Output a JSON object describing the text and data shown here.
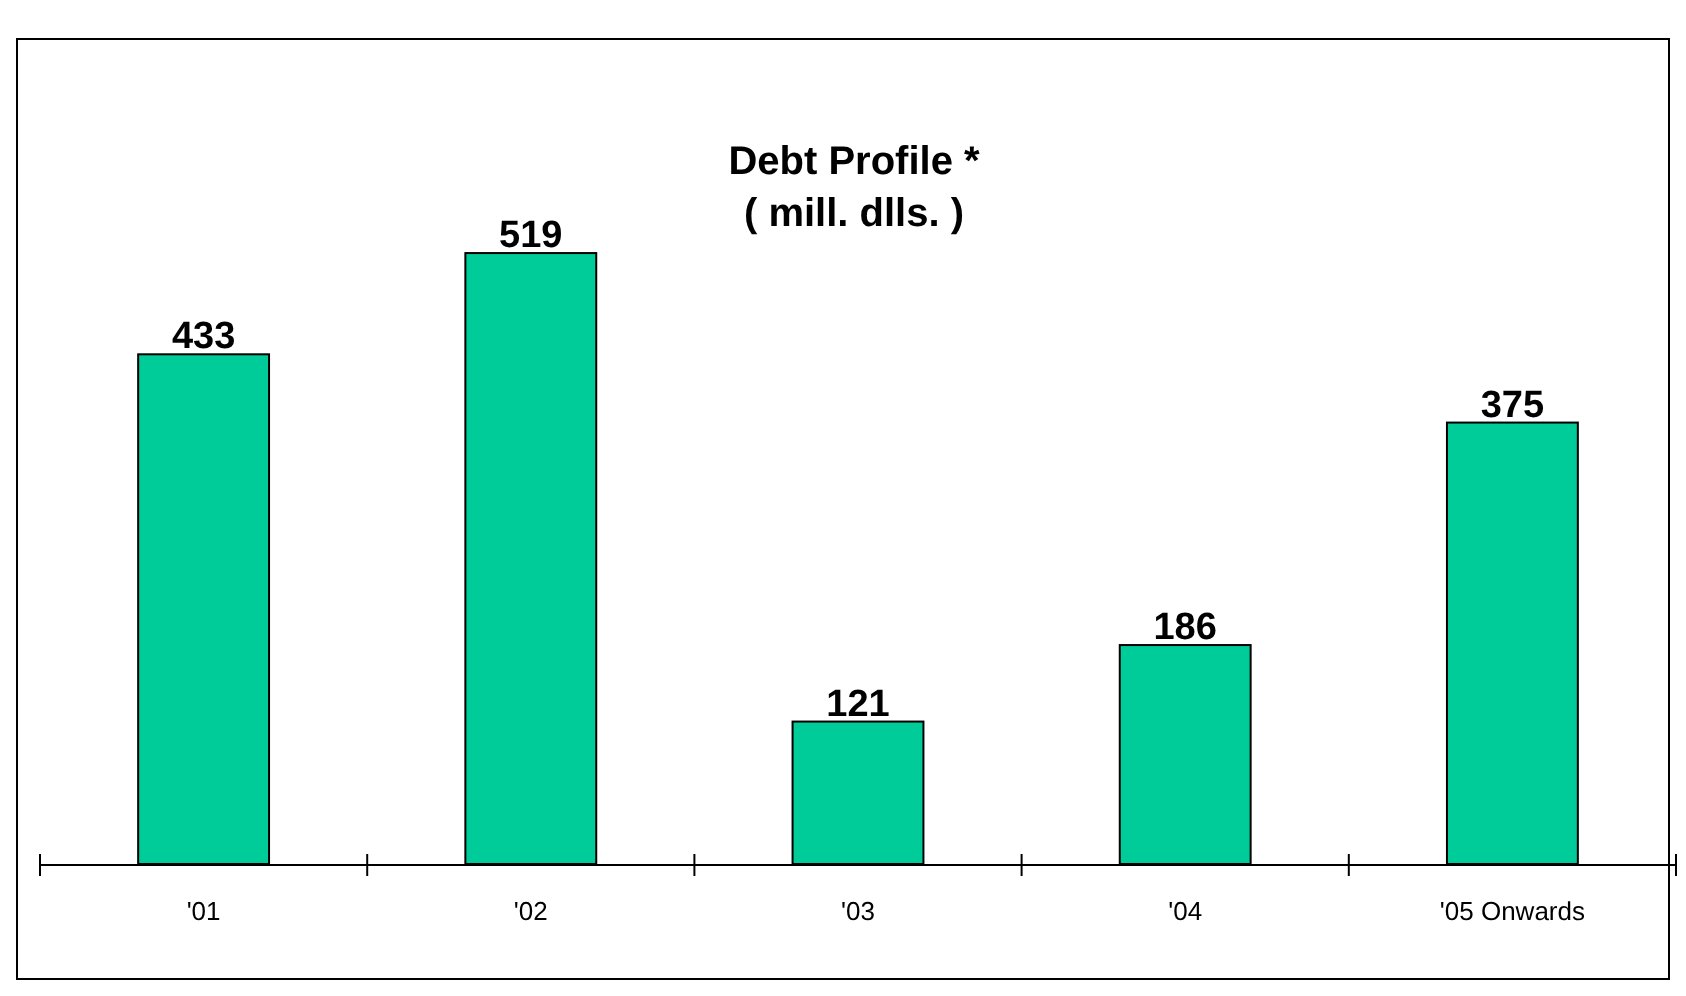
{
  "chart_data": {
    "type": "bar",
    "title": "Debt Profile *",
    "subtitle": "( mill. dlls. )",
    "categories": [
      "'01",
      "'02",
      "'03",
      "'04",
      "'05 Onwards"
    ],
    "values": [
      433,
      519,
      121,
      186,
      375
    ],
    "color": "#00cc99",
    "ylim": [
      0,
      700
    ],
    "tick_labels": "x",
    "data_labels": true
  }
}
